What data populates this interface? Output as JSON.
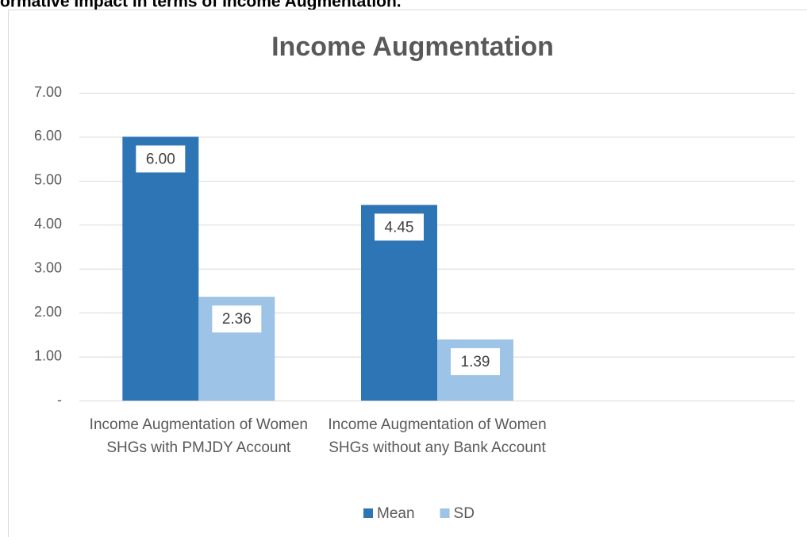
{
  "caption": "ormative Impact in terms of Income Augmentation.",
  "chart_data": {
    "type": "bar",
    "title": "Income Augmentation",
    "categories": [
      "Income Augmentation of Women SHGs with PMJDY Account",
      "Income Augmentation of Women SHGs without any Bank Account",
      null
    ],
    "series": [
      {
        "name": "Mean",
        "color": "#2e75b6",
        "values": [
          6.0,
          4.45,
          null
        ],
        "value_labels": [
          "6.00",
          "4.45",
          null
        ]
      },
      {
        "name": "SD",
        "color": "#9dc3e6",
        "values": [
          2.36,
          1.39,
          null
        ],
        "value_labels": [
          "2.36",
          "1.39",
          null
        ]
      }
    ],
    "ylim": [
      0,
      7
    ],
    "yticks": [
      {
        "value": 0,
        "label": "-"
      },
      {
        "value": 1,
        "label": "1.00"
      },
      {
        "value": 2,
        "label": "2.00"
      },
      {
        "value": 3,
        "label": "3.00"
      },
      {
        "value": 4,
        "label": "4.00"
      },
      {
        "value": 5,
        "label": "5.00"
      },
      {
        "value": 6,
        "label": "6.00"
      },
      {
        "value": 7,
        "label": "7.00"
      }
    ],
    "grid": true,
    "legend": "bottom"
  }
}
